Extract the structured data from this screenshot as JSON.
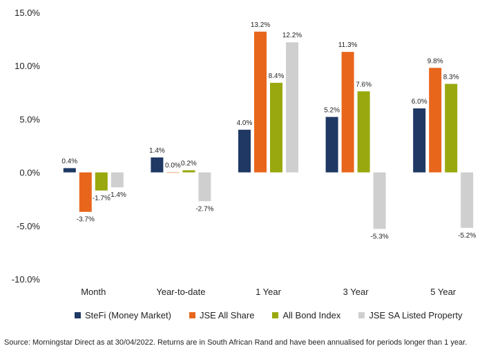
{
  "chart_data": {
    "type": "bar",
    "categories": [
      "Month",
      "Year-to-date",
      "1 Year",
      "3 Year",
      "5 Year"
    ],
    "series": [
      {
        "name": "SteFi (Money Market)",
        "color": "#1f3864",
        "values": [
          0.4,
          1.4,
          4.0,
          5.2,
          6.0
        ],
        "labels": [
          "0.4%",
          "1.4%",
          "4.0%",
          "5.2%",
          "6.0%"
        ]
      },
      {
        "name": "JSE All Share",
        "color": "#e8661c",
        "values": [
          -3.7,
          0.0,
          13.2,
          11.3,
          9.8
        ],
        "labels": [
          "-3.7%",
          "0.0%",
          "13.2%",
          "11.3%",
          "9.8%"
        ]
      },
      {
        "name": "All Bond Index",
        "color": "#99a80e",
        "values": [
          -1.7,
          0.2,
          8.4,
          7.6,
          8.3
        ],
        "labels": [
          "-1.7%",
          "0.2%",
          "8.4%",
          "7.6%",
          "8.3%"
        ]
      },
      {
        "name": "JSE SA Listed Property",
        "color": "#cfcfcf",
        "values": [
          -1.4,
          -2.7,
          12.2,
          -5.3,
          -5.2
        ],
        "labels": [
          "-1.4%",
          "-2.7%",
          "12.2%",
          "-5.3%",
          "-5.2%"
        ]
      }
    ],
    "ylim": [
      -10,
      15
    ],
    "yticks": [
      15,
      10,
      5,
      0,
      -5,
      -10
    ],
    "ytick_labels": [
      "15.0%",
      "10.0%",
      "5.0%",
      "0.0%",
      "-5.0%",
      "-10.0%"
    ],
    "grid": false,
    "legend_position": "bottom"
  },
  "legend": {
    "items": [
      {
        "label": "SteFi (Money Market)",
        "color": "#1f3864"
      },
      {
        "label": "JSE All Share",
        "color": "#e8661c"
      },
      {
        "label": "All Bond Index",
        "color": "#99a80e"
      },
      {
        "label": "JSE SA Listed Property",
        "color": "#cfcfcf"
      }
    ]
  },
  "source_note": "Source: Morningstar Direct as at 30/04/2022. Returns are in South African Rand and have been annualised for periods longer than 1 year."
}
